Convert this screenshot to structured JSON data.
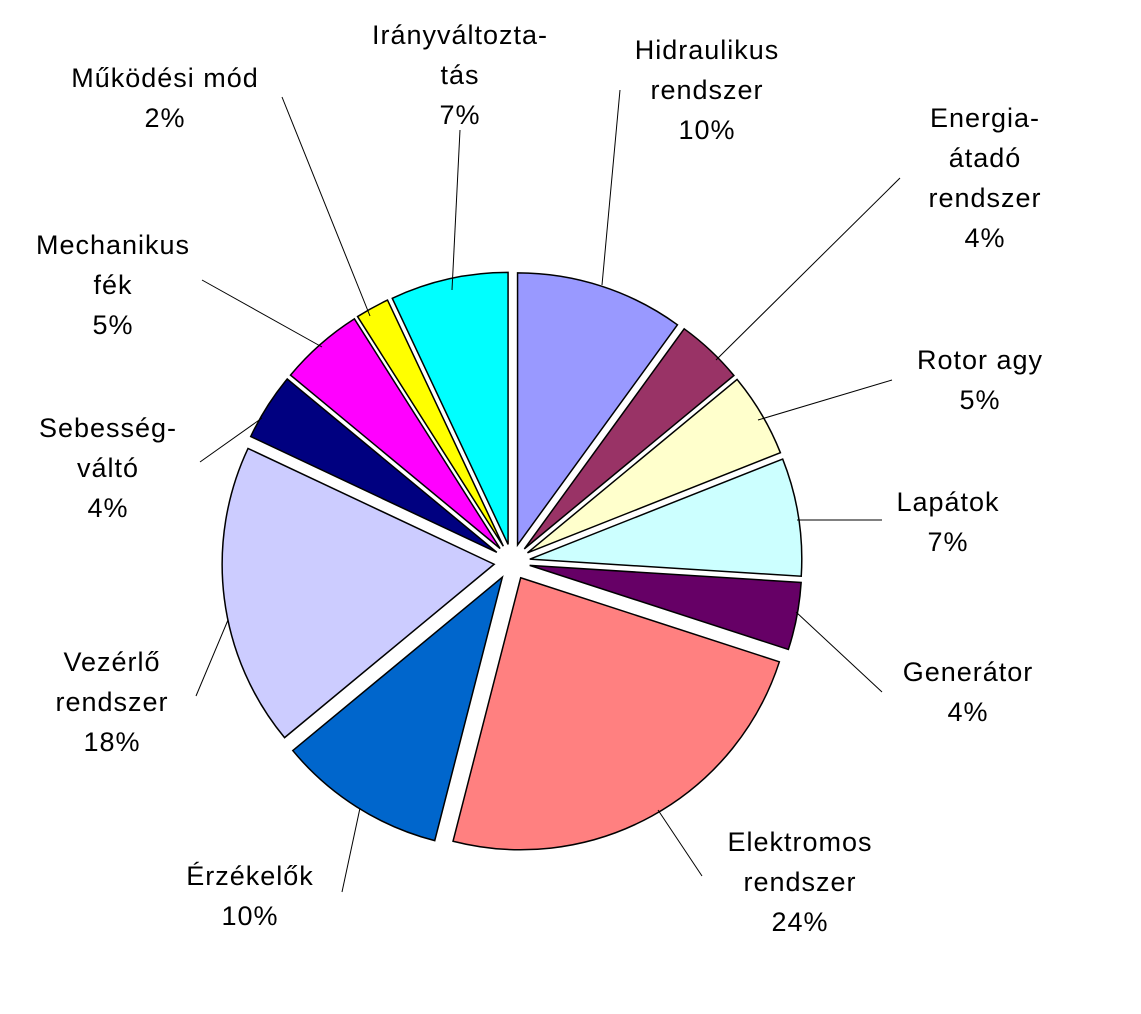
{
  "chart_data": {
    "type": "pie",
    "categories": [
      "Hidraulikus\nrendszer",
      "Energia-\nátadó\nrendszer",
      "Rotor agy",
      "Lapátok",
      "Generátor",
      "Elektromos\nrendszer",
      "Érzékelők",
      "Vezérlő\nrendszer",
      "Sebesség-\nváltó",
      "Mechanikus\nfék",
      "Működési mód",
      "Irányváltozta-\ntás"
    ],
    "values": [
      10,
      4,
      5,
      7,
      4,
      24,
      10,
      18,
      4,
      5,
      2,
      7
    ],
    "value_labels": [
      "10%",
      "4%",
      "5%",
      "7%",
      "4%",
      "24%",
      "10%",
      "18%",
      "4%",
      "5%",
      "2%",
      "7%"
    ],
    "colors": [
      "#9999ff",
      "#993366",
      "#ffffcc",
      "#ccffff",
      "#660066",
      "#ff8080",
      "#0066cc",
      "#ccccff",
      "#000080",
      "#ff00ff",
      "#ffff00",
      "#00ffff"
    ]
  }
}
